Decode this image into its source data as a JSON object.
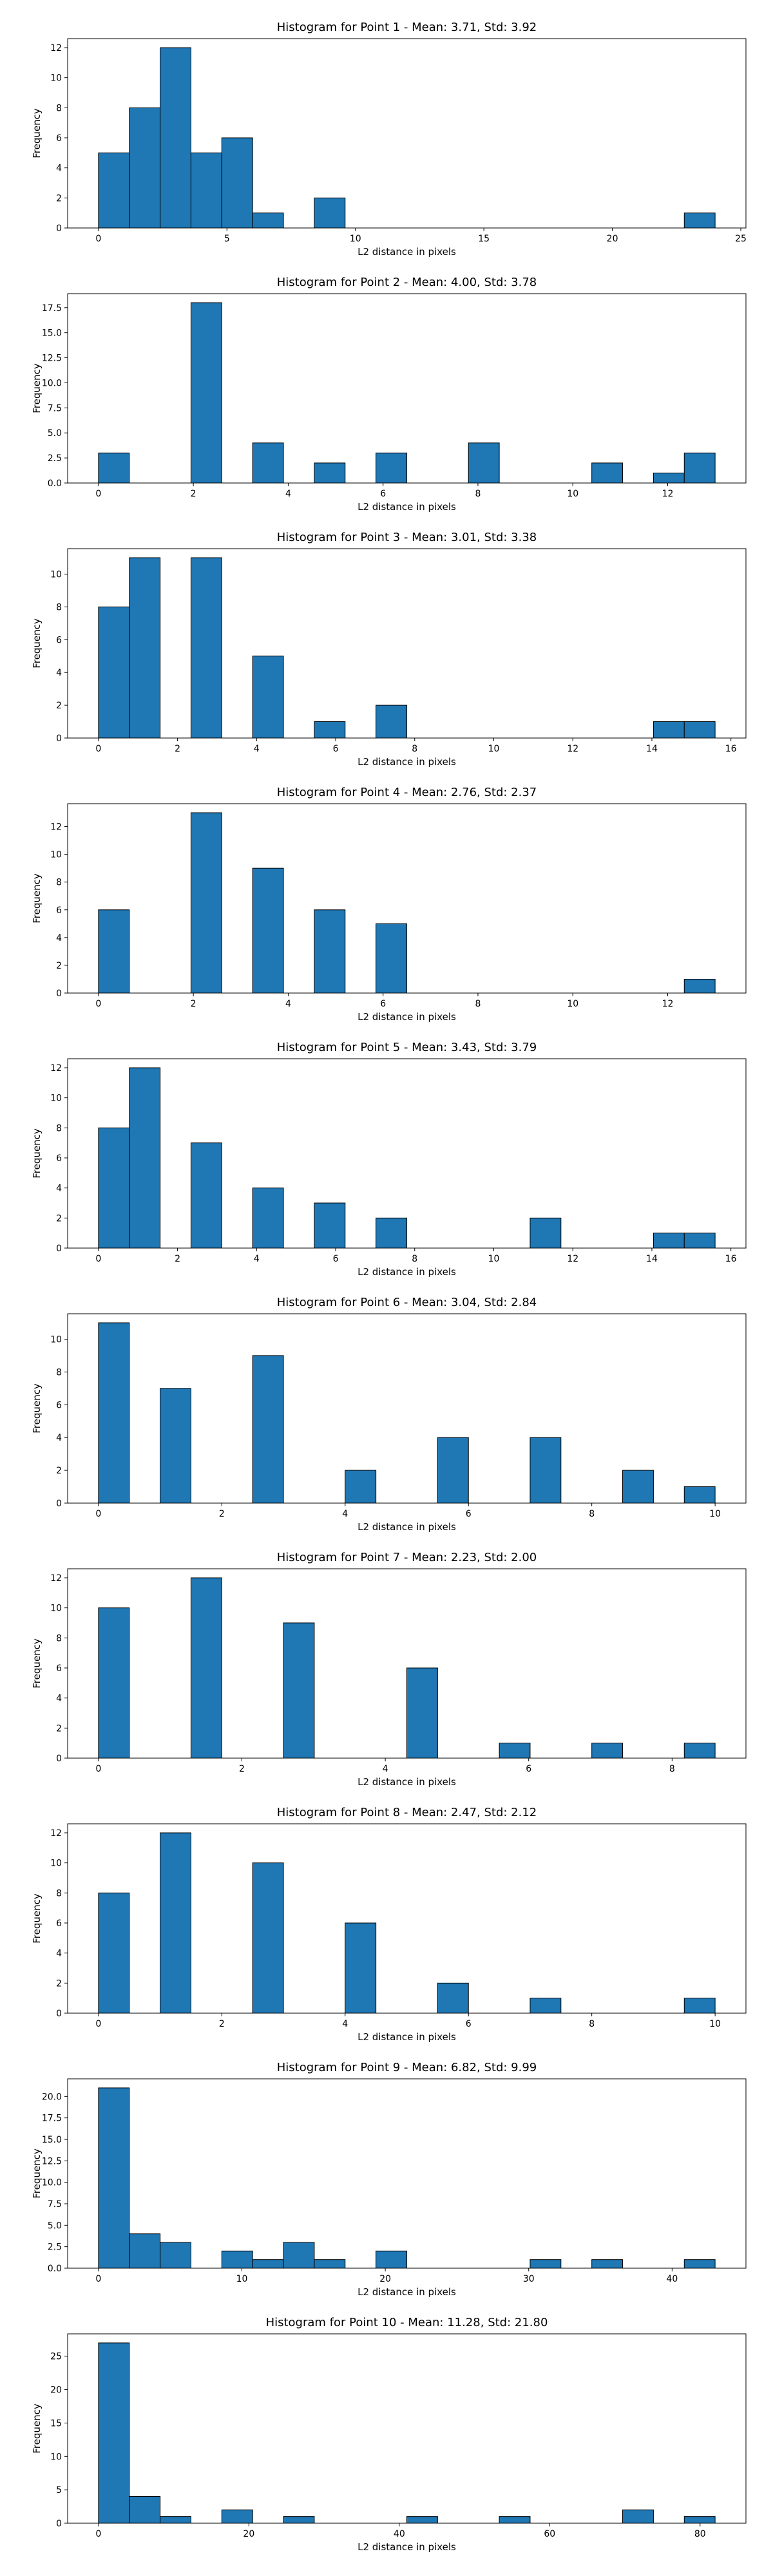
{
  "page": {
    "background": "#ffffff"
  },
  "style": {
    "bar_color": "#1f77b4",
    "edge_color": "#000000"
  },
  "chart_data": [
    {
      "type": "bar",
      "title": "Histogram for Point 1 - Mean: 3.71, Std: 3.92",
      "xlabel": "L2 distance in pixels",
      "ylabel": "Frequency",
      "bin_edges": [
        0.0,
        1.2,
        2.4,
        3.6,
        4.8,
        6.0,
        7.2,
        8.4,
        9.6,
        10.8,
        12.0,
        13.2,
        14.4,
        15.6,
        16.8,
        18.0,
        19.2,
        20.4,
        21.6,
        22.8,
        24.0
      ],
      "values": [
        5,
        8,
        12,
        5,
        6,
        1,
        0,
        2,
        0,
        0,
        0,
        0,
        0,
        0,
        0,
        0,
        0,
        0,
        0,
        1
      ],
      "xlim": [
        -1.2,
        25.2
      ],
      "ylim": [
        0,
        12.6
      ],
      "xticks": [
        0,
        5,
        10,
        15,
        20,
        25
      ],
      "yticks": [
        0,
        2,
        4,
        6,
        8,
        10,
        12
      ],
      "xtick_labels": [
        "0",
        "5",
        "10",
        "15",
        "20",
        "25"
      ],
      "ytick_labels": [
        "0",
        "2",
        "4",
        "6",
        "8",
        "10",
        "12"
      ],
      "grid": false
    },
    {
      "type": "bar",
      "title": "Histogram for Point 2 - Mean: 4.00, Std: 3.78",
      "xlabel": "L2 distance in pixels",
      "ylabel": "Frequency",
      "bin_edges": [
        0.0,
        0.65,
        1.3,
        1.95,
        2.6,
        3.25,
        3.9,
        4.55,
        5.2,
        5.85,
        6.5,
        7.15,
        7.8,
        8.45,
        9.1,
        9.75,
        10.4,
        11.05,
        11.7,
        12.35,
        13.0
      ],
      "values": [
        3,
        0,
        0,
        18,
        0,
        4,
        0,
        2,
        0,
        3,
        0,
        0,
        4,
        0,
        0,
        0,
        2,
        0,
        1,
        3
      ],
      "xlim": [
        -0.65,
        13.65
      ],
      "ylim": [
        0,
        18.9
      ],
      "xticks": [
        0,
        2,
        4,
        6,
        8,
        10,
        12
      ],
      "yticks": [
        0,
        2.5,
        5,
        7.5,
        10,
        12.5,
        15,
        17.5
      ],
      "xtick_labels": [
        "0",
        "2",
        "4",
        "6",
        "8",
        "10",
        "12"
      ],
      "ytick_labels": [
        "0.0",
        "2.5",
        "5.0",
        "7.5",
        "10.0",
        "12.5",
        "15.0",
        "17.5"
      ],
      "grid": false
    },
    {
      "type": "bar",
      "title": "Histogram for Point 3 - Mean: 3.01, Std: 3.38",
      "xlabel": "L2 distance in pixels",
      "ylabel": "Frequency",
      "bin_edges": [
        0.0,
        0.78,
        1.56,
        2.34,
        3.12,
        3.9,
        4.68,
        5.46,
        6.24,
        7.02,
        7.8,
        8.58,
        9.36,
        10.14,
        10.92,
        11.7,
        12.48,
        13.26,
        14.04,
        14.82,
        15.6
      ],
      "values": [
        8,
        11,
        0,
        11,
        0,
        5,
        0,
        1,
        0,
        2,
        0,
        0,
        0,
        0,
        0,
        0,
        0,
        0,
        1,
        1
      ],
      "xlim": [
        -0.78,
        16.38
      ],
      "ylim": [
        0,
        11.55
      ],
      "xticks": [
        0,
        2,
        4,
        6,
        8,
        10,
        12,
        14,
        16
      ],
      "yticks": [
        0,
        2,
        4,
        6,
        8,
        10
      ],
      "xtick_labels": [
        "0",
        "2",
        "4",
        "6",
        "8",
        "10",
        "12",
        "14",
        "16"
      ],
      "ytick_labels": [
        "0",
        "2",
        "4",
        "6",
        "8",
        "10"
      ],
      "grid": false
    },
    {
      "type": "bar",
      "title": "Histogram for Point 4 - Mean: 2.76, Std: 2.37",
      "xlabel": "L2 distance in pixels",
      "ylabel": "Frequency",
      "bin_edges": [
        0.0,
        0.65,
        1.3,
        1.95,
        2.6,
        3.25,
        3.9,
        4.55,
        5.2,
        5.85,
        6.5,
        7.15,
        7.8,
        8.45,
        9.1,
        9.75,
        10.4,
        11.05,
        11.7,
        12.35,
        13.0
      ],
      "values": [
        6,
        0,
        0,
        13,
        0,
        9,
        0,
        6,
        0,
        5,
        0,
        0,
        0,
        0,
        0,
        0,
        0,
        0,
        0,
        1
      ],
      "xlim": [
        -0.65,
        13.65
      ],
      "ylim": [
        0,
        13.65
      ],
      "xticks": [
        0,
        2,
        4,
        6,
        8,
        10,
        12
      ],
      "yticks": [
        0,
        2,
        4,
        6,
        8,
        10,
        12
      ],
      "xtick_labels": [
        "0",
        "2",
        "4",
        "6",
        "8",
        "10",
        "12"
      ],
      "ytick_labels": [
        "0",
        "2",
        "4",
        "6",
        "8",
        "10",
        "12"
      ],
      "grid": false
    },
    {
      "type": "bar",
      "title": "Histogram for Point 5 - Mean: 3.43, Std: 3.79",
      "xlabel": "L2 distance in pixels",
      "ylabel": "Frequency",
      "bin_edges": [
        0.0,
        0.78,
        1.56,
        2.34,
        3.12,
        3.9,
        4.68,
        5.46,
        6.24,
        7.02,
        7.8,
        8.58,
        9.36,
        10.14,
        10.92,
        11.7,
        12.48,
        13.26,
        14.04,
        14.82,
        15.6
      ],
      "values": [
        8,
        12,
        0,
        7,
        0,
        4,
        0,
        3,
        0,
        2,
        0,
        0,
        0,
        0,
        2,
        0,
        0,
        0,
        1,
        1
      ],
      "xlim": [
        -0.78,
        16.38
      ],
      "ylim": [
        0,
        12.6
      ],
      "xticks": [
        0,
        2,
        4,
        6,
        8,
        10,
        12,
        14,
        16
      ],
      "yticks": [
        0,
        2,
        4,
        6,
        8,
        10,
        12
      ],
      "xtick_labels": [
        "0",
        "2",
        "4",
        "6",
        "8",
        "10",
        "12",
        "14",
        "16"
      ],
      "ytick_labels": [
        "0",
        "2",
        "4",
        "6",
        "8",
        "10",
        "12"
      ],
      "grid": false
    },
    {
      "type": "bar",
      "title": "Histogram for Point 6 - Mean: 3.04, Std: 2.84",
      "xlabel": "L2 distance in pixels",
      "ylabel": "Frequency",
      "bin_edges": [
        0.0,
        0.5,
        1.0,
        1.5,
        2.0,
        2.5,
        3.0,
        3.5,
        4.0,
        4.5,
        5.0,
        5.5,
        6.0,
        6.5,
        7.0,
        7.5,
        8.0,
        8.5,
        9.0,
        9.5,
        10.0
      ],
      "values": [
        11,
        0,
        7,
        0,
        0,
        9,
        0,
        0,
        2,
        0,
        0,
        4,
        0,
        0,
        4,
        0,
        0,
        2,
        0,
        1
      ],
      "xlim": [
        -0.5,
        10.5
      ],
      "ylim": [
        0,
        11.55
      ],
      "xticks": [
        0,
        2,
        4,
        6,
        8,
        10
      ],
      "yticks": [
        0,
        2,
        4,
        6,
        8,
        10
      ],
      "xtick_labels": [
        "0",
        "2",
        "4",
        "6",
        "8",
        "10"
      ],
      "ytick_labels": [
        "0",
        "2",
        "4",
        "6",
        "8",
        "10"
      ],
      "grid": false
    },
    {
      "type": "bar",
      "title": "Histogram for Point 7 - Mean: 2.23, Std: 2.00",
      "xlabel": "L2 distance in pixels",
      "ylabel": "Frequency",
      "bin_edges": [
        0.0,
        0.43,
        0.86,
        1.29,
        1.72,
        2.15,
        2.58,
        3.01,
        3.44,
        3.87,
        4.3,
        4.73,
        5.16,
        5.59,
        6.02,
        6.45,
        6.88,
        7.31,
        7.74,
        8.17,
        8.6
      ],
      "values": [
        10,
        0,
        0,
        12,
        0,
        0,
        9,
        0,
        0,
        0,
        6,
        0,
        0,
        1,
        0,
        0,
        1,
        0,
        0,
        1
      ],
      "xlim": [
        -0.43,
        9.03
      ],
      "ylim": [
        0,
        12.6
      ],
      "xticks": [
        0,
        2,
        4,
        6,
        8
      ],
      "yticks": [
        0,
        2,
        4,
        6,
        8,
        10,
        12
      ],
      "xtick_labels": [
        "0",
        "2",
        "4",
        "6",
        "8"
      ],
      "ytick_labels": [
        "0",
        "2",
        "4",
        "6",
        "8",
        "10",
        "12"
      ],
      "grid": false
    },
    {
      "type": "bar",
      "title": "Histogram for Point 8 - Mean: 2.47, Std: 2.12",
      "xlabel": "L2 distance in pixels",
      "ylabel": "Frequency",
      "bin_edges": [
        0.0,
        0.5,
        1.0,
        1.5,
        2.0,
        2.5,
        3.0,
        3.5,
        4.0,
        4.5,
        5.0,
        5.5,
        6.0,
        6.5,
        7.0,
        7.5,
        8.0,
        8.5,
        9.0,
        9.5,
        10.0
      ],
      "values": [
        8,
        0,
        12,
        0,
        0,
        10,
        0,
        0,
        6,
        0,
        0,
        2,
        0,
        0,
        1,
        0,
        0,
        0,
        0,
        1
      ],
      "xlim": [
        -0.5,
        10.5
      ],
      "ylim": [
        0,
        12.6
      ],
      "xticks": [
        0,
        2,
        4,
        6,
        8,
        10
      ],
      "yticks": [
        0,
        2,
        4,
        6,
        8,
        10,
        12
      ],
      "xtick_labels": [
        "0",
        "2",
        "4",
        "6",
        "8",
        "10"
      ],
      "ytick_labels": [
        "0",
        "2",
        "4",
        "6",
        "8",
        "10",
        "12"
      ],
      "grid": false
    },
    {
      "type": "bar",
      "title": "Histogram for Point 9 - Mean: 6.82, Std: 9.99",
      "xlabel": "L2 distance in pixels",
      "ylabel": "Frequency",
      "bin_edges": [
        0.0,
        2.15,
        4.3,
        6.45,
        8.6,
        10.75,
        12.9,
        15.05,
        17.2,
        19.35,
        21.5,
        23.65,
        25.8,
        27.95,
        30.1,
        32.25,
        34.4,
        36.55,
        38.7,
        40.85,
        43.0
      ],
      "values": [
        21,
        4,
        3,
        0,
        2,
        1,
        3,
        1,
        0,
        2,
        0,
        0,
        0,
        0,
        1,
        0,
        1,
        0,
        0,
        1
      ],
      "xlim": [
        -2.15,
        45.15
      ],
      "ylim": [
        0,
        22.05
      ],
      "xticks": [
        0,
        10,
        20,
        30,
        40
      ],
      "yticks": [
        0,
        2.5,
        5,
        7.5,
        10,
        12.5,
        15,
        17.5,
        20
      ],
      "xtick_labels": [
        "0",
        "10",
        "20",
        "30",
        "40"
      ],
      "ytick_labels": [
        "0.0",
        "2.5",
        "5.0",
        "7.5",
        "10.0",
        "12.5",
        "15.0",
        "17.5",
        "20.0"
      ],
      "grid": false
    },
    {
      "type": "bar",
      "title": "Histogram for Point 10 - Mean: 11.28, Std: 21.80",
      "xlabel": "L2 distance in pixels",
      "ylabel": "Frequency",
      "bin_edges": [
        0.0,
        4.1,
        8.2,
        12.3,
        16.4,
        20.5,
        24.6,
        28.7,
        32.8,
        36.9,
        41.0,
        45.1,
        49.2,
        53.3,
        57.4,
        61.5,
        65.6,
        69.7,
        73.8,
        77.9,
        82.0
      ],
      "values": [
        27,
        4,
        1,
        0,
        2,
        0,
        1,
        0,
        0,
        0,
        1,
        0,
        0,
        1,
        0,
        0,
        0,
        2,
        0,
        1
      ],
      "xlim": [
        -4.1,
        86.1
      ],
      "ylim": [
        0,
        28.35
      ],
      "xticks": [
        0,
        20,
        40,
        60,
        80
      ],
      "yticks": [
        0,
        5,
        10,
        15,
        20,
        25
      ],
      "xtick_labels": [
        "0",
        "20",
        "40",
        "60",
        "80"
      ],
      "ytick_labels": [
        "0",
        "5",
        "10",
        "15",
        "20",
        "25"
      ],
      "grid": false
    }
  ]
}
